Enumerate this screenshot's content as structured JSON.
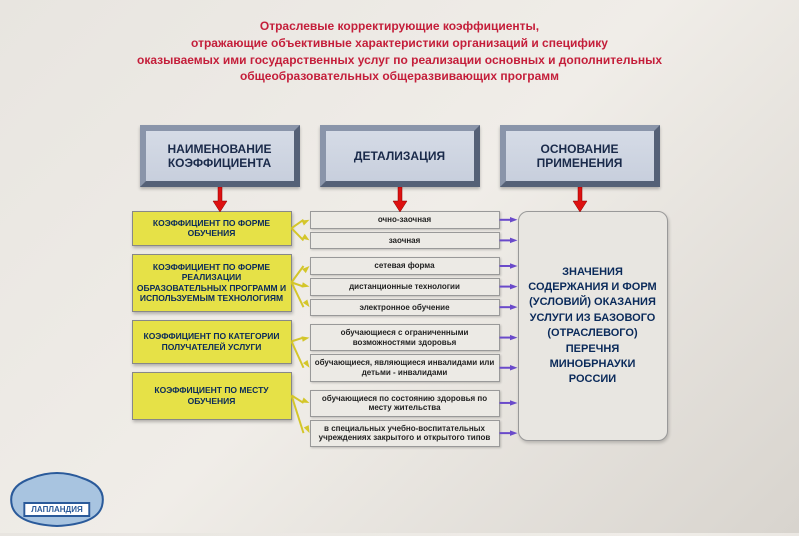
{
  "title": {
    "line1": "Отраслевые корректирующие коэффициенты,",
    "line2": "отражающие объективные характеристики организаций и специфику",
    "line3": "оказываемых ими государственных услуг по реализации основных и дополнительных",
    "line4": "общеобразовательных общеразвивающих программ",
    "color": "#c41e3a"
  },
  "headers": [
    {
      "label": "НАИМЕНОВАНИЕ КОЭФФИЦИЕНТА"
    },
    {
      "label": "ДЕТАЛИЗАЦИЯ"
    },
    {
      "label": "ОСНОВАНИЕ ПРИМЕНЕНИЯ"
    }
  ],
  "header_style": {
    "bg_top": "#d5dbe6",
    "bg_bottom": "#c8cfdd",
    "border_light": "#8a95aa",
    "border_dark": "#556177",
    "text_color": "#1a2a4a"
  },
  "col1": [
    {
      "label": "КОЭФФИЦИЕНТ ПО ФОРМЕ ОБУЧЕНИЯ",
      "height": 34
    },
    {
      "label": "КОЭФФИЦИЕНТ ПО ФОРМЕ РЕАЛИЗАЦИИ ОБРАЗОВАТЕЛЬНЫХ ПРОГРАММ И ИСПОЛЬЗУЕМЫМ ТЕХНОЛОГИЯМ",
      "height": 58
    },
    {
      "label": "КОЭФФИЦИЕНТ ПО КАТЕГОРИИ ПОЛУЧАТЕЛЕЙ УСЛУГИ",
      "height": 44
    },
    {
      "label": "КОЭФФИЦИЕНТ ПО МЕСТУ ОБУЧЕНИЯ",
      "height": 48
    }
  ],
  "col1_style": {
    "bg": "#e6e147",
    "text_color": "#0a2a5a"
  },
  "col2": [
    {
      "items": [
        "очно-заочная",
        "заочная"
      ]
    },
    {
      "items": [
        "сетевая форма",
        "дистанционные технологии",
        "электронное обучение"
      ]
    },
    {
      "items": [
        "обучающиеся с ограниченными возможностями здоровья",
        "обучающиеся, являющиеся инвалидами или детьми - инвалидами"
      ]
    },
    {
      "items": [
        "обучающиеся по состоянию здоровья по месту жительства",
        "в специальных учебно-воспитательных учреждениях закрытого и открытого типов"
      ]
    }
  ],
  "col2_style": {
    "bg": "#eceae5"
  },
  "col3": {
    "label": "ЗНАЧЕНИЯ СОДЕРЖАНИЯ И ФОРМ (УСЛОВИЙ) ОКАЗАНИЯ УСЛУГИ ИЗ БАЗОВОГО (ОТРАСЛЕВОГО) ПЕРЕЧНЯ МИНОБРНАУКИ РОССИИ",
    "bg": "#e8e6e1",
    "text_color": "#0a2a5a"
  },
  "arrows": {
    "red": "#d11",
    "yellow": "#d4c62a",
    "purple": "#6a4aca"
  },
  "logo": {
    "text": "ЛАПЛАНДИЯ",
    "color": "#2a5a9a"
  }
}
